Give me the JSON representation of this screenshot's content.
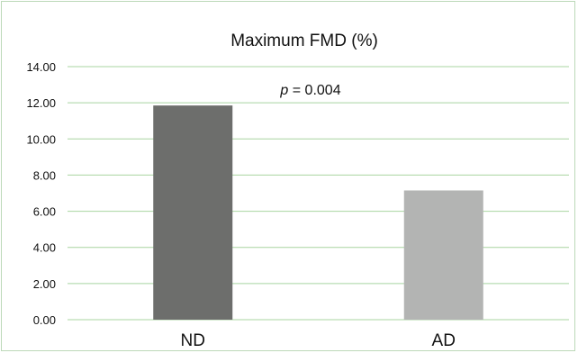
{
  "chart_data": {
    "type": "bar",
    "title": "Maximum FMD (%)",
    "categories": [
      "ND",
      "AD"
    ],
    "values": [
      11.85,
      7.15
    ],
    "ylim": [
      0,
      14
    ],
    "yticks": [
      "0.00",
      "2.00",
      "4.00",
      "6.00",
      "8.00",
      "10.00",
      "12.00",
      "14.00"
    ],
    "annotation": {
      "prefix": "p",
      "text": " = 0.004"
    },
    "grid": true,
    "legend": "none",
    "bar_colors": [
      "#6d6e6c",
      "#b3b4b3"
    ],
    "grid_color": "#a8d4a0"
  }
}
